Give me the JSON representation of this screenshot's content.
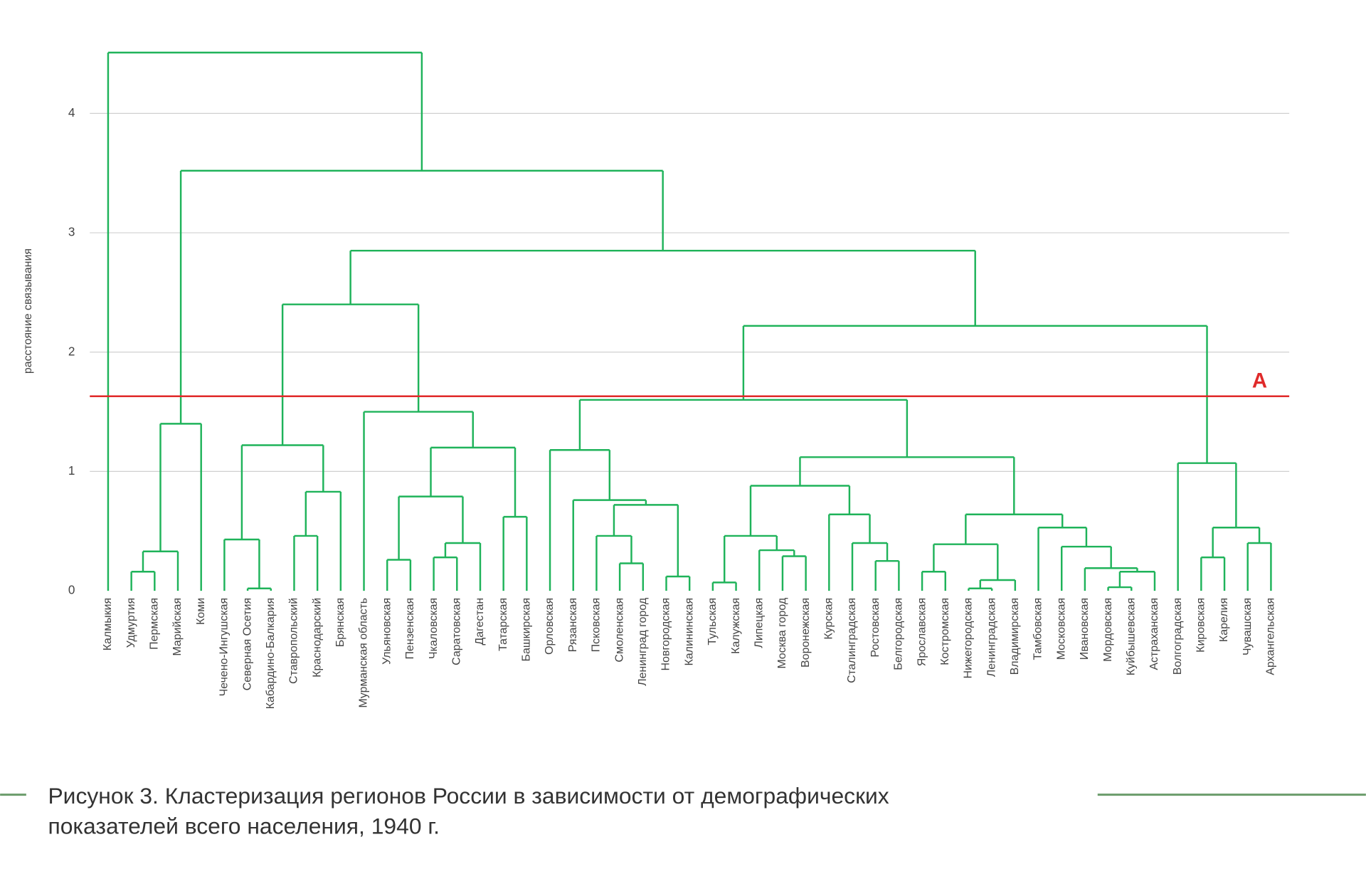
{
  "chart_data": {
    "type": "dendrogram",
    "y_label": "расстояние связывания",
    "ylim": [
      0,
      4.6
    ],
    "yticks": [
      0,
      1,
      2,
      3,
      4
    ],
    "grid": true,
    "color": "#1fb35a",
    "threshold": 1.63,
    "threshold_label": "A",
    "threshold_color": "#e02a2a",
    "caption": [
      "Рисунок 3. Кластеризация регионов России в зависимости от демографических",
      "показателей всего населения, 1940 г."
    ],
    "tree": {
      "height": 4.51,
      "children": [
        "Калмыкия",
        {
          "height": 3.52,
          "children": [
            {
              "height": 1.4,
              "children": [
                {
                  "height": 0.33,
                  "children": [
                    {
                      "height": 0.16,
                      "children": [
                        "Удмуртия",
                        "Пермская"
                      ]
                    },
                    "Марийская"
                  ]
                },
                "Коми"
              ]
            },
            {
              "height": 2.85,
              "children": [
                {
                  "height": 2.4,
                  "children": [
                    {
                      "height": 1.22,
                      "children": [
                        {
                          "height": 0.43,
                          "children": [
                            "Чечено-Ингушская",
                            {
                              "height": 0.02,
                              "children": [
                                "Северная Осетия",
                                "Кабардино-Балкария"
                              ]
                            }
                          ]
                        },
                        {
                          "height": 0.83,
                          "children": [
                            {
                              "height": 0.46,
                              "children": [
                                "Ставропольский",
                                "Краснодарский"
                              ]
                            },
                            "Брянская"
                          ]
                        }
                      ]
                    },
                    {
                      "height": 1.5,
                      "children": [
                        "Мурманская область",
                        {
                          "height": 1.2,
                          "children": [
                            {
                              "height": 0.79,
                              "children": [
                                {
                                  "height": 0.26,
                                  "children": [
                                    "Ульяновская",
                                    "Пензенская"
                                  ]
                                },
                                {
                                  "height": 0.4,
                                  "children": [
                                    {
                                      "height": 0.28,
                                      "children": [
                                        "Чкаловская",
                                        "Саратовская"
                                      ]
                                    },
                                    "Дагестан"
                                  ]
                                }
                              ]
                            },
                            {
                              "height": 0.62,
                              "children": [
                                "Татарская",
                                "Башкирская"
                              ]
                            }
                          ]
                        }
                      ]
                    }
                  ]
                },
                {
                  "height": 2.22,
                  "children": [
                    {
                      "height": 1.6,
                      "children": [
                        {
                          "height": 1.18,
                          "children": [
                            "Орловская",
                            {
                              "height": 0.76,
                              "children": [
                                "Рязанская",
                                {
                                  "height": 0.72,
                                  "children": [
                                    {
                                      "height": 0.46,
                                      "children": [
                                        "Псковская",
                                        {
                                          "height": 0.23,
                                          "children": [
                                            "Смоленская",
                                            "Ленинград город"
                                          ]
                                        }
                                      ]
                                    },
                                    {
                                      "height": 0.12,
                                      "children": [
                                        "Новгородская",
                                        "Калининская"
                                      ]
                                    }
                                  ]
                                }
                              ]
                            }
                          ]
                        },
                        {
                          "height": 1.12,
                          "children": [
                            {
                              "height": 0.88,
                              "children": [
                                {
                                  "height": 0.46,
                                  "children": [
                                    {
                                      "height": 0.07,
                                      "children": [
                                        "Тульская",
                                        "Калужская"
                                      ]
                                    },
                                    {
                                      "height": 0.34,
                                      "children": [
                                        "Липецкая",
                                        {
                                          "height": 0.29,
                                          "children": [
                                            "Москва город",
                                            "Воронежская"
                                          ]
                                        }
                                      ]
                                    }
                                  ]
                                },
                                {
                                  "height": 0.64,
                                  "children": [
                                    "Курская",
                                    {
                                      "height": 0.4,
                                      "children": [
                                        "Сталинградская",
                                        {
                                          "height": 0.25,
                                          "children": [
                                            "Ростовская",
                                            "Белгородская"
                                          ]
                                        }
                                      ]
                                    }
                                  ]
                                }
                              ]
                            },
                            {
                              "height": 0.64,
                              "children": [
                                {
                                  "height": 0.39,
                                  "children": [
                                    {
                                      "height": 0.16,
                                      "children": [
                                        "Ярославская",
                                        "Костромская"
                                      ]
                                    },
                                    {
                                      "height": 0.09,
                                      "children": [
                                        {
                                          "height": 0.02,
                                          "children": [
                                            "Нижегородская",
                                            "Ленинградская"
                                          ]
                                        },
                                        "Владимирская"
                                      ]
                                    }
                                  ]
                                },
                                {
                                  "height": 0.53,
                                  "children": [
                                    "Тамбовская",
                                    {
                                      "height": 0.37,
                                      "children": [
                                        "Московская",
                                        {
                                          "height": 0.19,
                                          "children": [
                                            "Ивановская",
                                            {
                                              "height": 0.16,
                                              "children": [
                                                {
                                                  "height": 0.03,
                                                  "children": [
                                                    "Мордовская",
                                                    "Куйбышевская"
                                                  ]
                                                },
                                                "Астраханская"
                                              ]
                                            }
                                          ]
                                        }
                                      ]
                                    }
                                  ]
                                }
                              ]
                            }
                          ]
                        }
                      ]
                    },
                    {
                      "height": 1.07,
                      "children": [
                        "Волгоградская",
                        {
                          "height": 0.53,
                          "children": [
                            {
                              "height": 0.28,
                              "children": [
                                "Кировская",
                                "Карелия"
                              ]
                            },
                            {
                              "height": 0.4,
                              "children": [
                                "Чувашская",
                                "Архангельская"
                              ]
                            }
                          ]
                        }
                      ]
                    }
                  ]
                }
              ]
            }
          ]
        }
      ]
    }
  }
}
